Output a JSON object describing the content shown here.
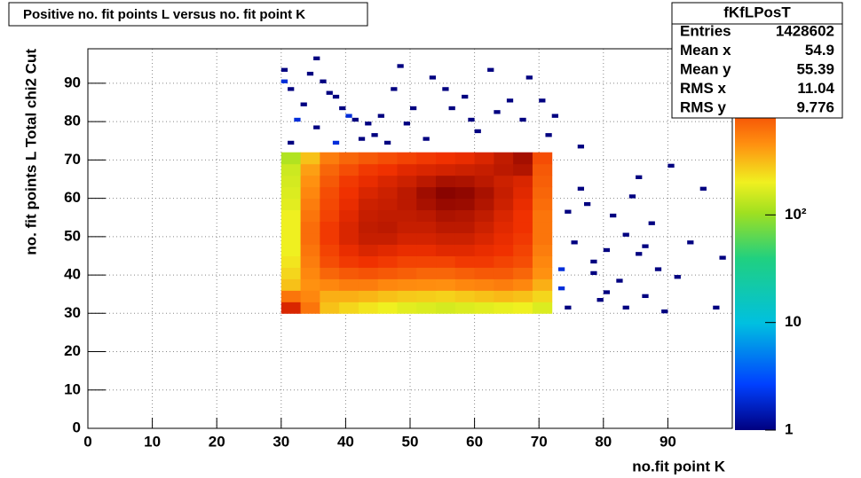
{
  "chart_data": {
    "type": "heatmap",
    "title": "Positive no. fit points L versus no. fit point K",
    "xlabel": "no.fit point K",
    "ylabel": "no. fit points  L  Total chi2 Cut",
    "xlim": [
      0,
      100
    ],
    "ylim": [
      0,
      99
    ],
    "xticks": [
      0,
      10,
      20,
      30,
      40,
      50,
      60,
      70,
      80,
      90
    ],
    "yticks": [
      0,
      10,
      20,
      30,
      40,
      50,
      60,
      70,
      80,
      90
    ],
    "grid": true,
    "zscale": "log",
    "zlim": [
      1,
      3500
    ],
    "zticks": [
      1,
      10,
      {
        "value": 100,
        "label": "10²"
      }
    ],
    "xbins": [
      30,
      33,
      36,
      39,
      42,
      45,
      48,
      51,
      54,
      57,
      60,
      63,
      66,
      69,
      72
    ],
    "ybins": [
      30,
      33,
      36,
      39,
      42,
      45,
      48,
      51,
      54,
      57,
      60,
      63,
      66,
      69,
      72
    ],
    "values": [
      [
        1500,
        600,
        300,
        250,
        220,
        200,
        180,
        170,
        160,
        170,
        180,
        190,
        200,
        170
      ],
      [
        600,
        500,
        350,
        350,
        330,
        300,
        280,
        270,
        260,
        280,
        300,
        320,
        300,
        250
      ],
      [
        300,
        450,
        500,
        550,
        550,
        500,
        480,
        470,
        460,
        500,
        520,
        550,
        500,
        350
      ],
      [
        250,
        500,
        700,
        800,
        850,
        800,
        750,
        700,
        700,
        750,
        800,
        800,
        700,
        450
      ],
      [
        220,
        550,
        900,
        1100,
        1200,
        1100,
        1000,
        1000,
        1000,
        1100,
        1100,
        1000,
        900,
        500
      ],
      [
        200,
        600,
        1000,
        1300,
        1500,
        1400,
        1300,
        1300,
        1400,
        1400,
        1300,
        1200,
        1000,
        550
      ],
      [
        200,
        650,
        1100,
        1500,
        1800,
        1800,
        1600,
        1600,
        1700,
        1700,
        1500,
        1300,
        1100,
        600
      ],
      [
        200,
        650,
        1100,
        1500,
        1900,
        2000,
        1800,
        1800,
        2000,
        2000,
        1700,
        1400,
        1200,
        600
      ],
      [
        200,
        600,
        1000,
        1400,
        1800,
        1900,
        1900,
        2000,
        2300,
        2200,
        1900,
        1500,
        1200,
        600
      ],
      [
        180,
        550,
        950,
        1300,
        1700,
        1800,
        2000,
        2400,
        2800,
        2700,
        2200,
        1700,
        1300,
        650
      ],
      [
        170,
        500,
        900,
        1200,
        1500,
        1700,
        2000,
        2600,
        3200,
        3000,
        2400,
        1800,
        1400,
        700
      ],
      [
        160,
        450,
        800,
        1100,
        1300,
        1500,
        1700,
        2000,
        2400,
        2300,
        2000,
        1700,
        1500,
        750
      ],
      [
        150,
        400,
        700,
        900,
        1100,
        1200,
        1400,
        1500,
        1600,
        1700,
        1800,
        2000,
        2200,
        800
      ],
      [
        120,
        300,
        550,
        700,
        800,
        900,
        1000,
        1100,
        1200,
        1300,
        1500,
        1900,
        2500,
        900
      ]
    ],
    "sparse": {
      "x": [
        30,
        30,
        31,
        32,
        33,
        34,
        35,
        36,
        37,
        38,
        39,
        40,
        41,
        42,
        43,
        44,
        45,
        47,
        48,
        49,
        50,
        52,
        53,
        55,
        56,
        58,
        59,
        60,
        62,
        63,
        65,
        67,
        68,
        70,
        72,
        71,
        35,
        38,
        46,
        31,
        73,
        73,
        74,
        75,
        76,
        77,
        78,
        79,
        80,
        81,
        82,
        83,
        84,
        85,
        86,
        87,
        88,
        89,
        91,
        93,
        95,
        97,
        98,
        90,
        76,
        85,
        74,
        78,
        80,
        83,
        86
      ],
      "y": [
        93,
        90,
        88,
        80,
        84,
        92,
        96,
        90,
        87,
        86,
        83,
        81,
        80,
        75,
        79,
        76,
        81,
        88,
        94,
        79,
        83,
        75,
        91,
        88,
        83,
        86,
        80,
        77,
        93,
        82,
        85,
        80,
        91,
        85,
        81,
        76,
        78,
        74,
        74,
        74,
        41,
        36,
        31,
        48,
        62,
        58,
        40,
        33,
        46,
        55,
        38,
        50,
        60,
        45,
        34,
        53,
        41,
        30,
        39,
        48,
        62,
        31,
        44,
        68,
        73,
        65,
        56,
        43,
        35,
        31,
        47
      ],
      "values": [
        1,
        2,
        1,
        2,
        1,
        1,
        1,
        1,
        1,
        1,
        1,
        2,
        1,
        1,
        1,
        1,
        1,
        1,
        1,
        1,
        1,
        1,
        1,
        1,
        1,
        1,
        1,
        1,
        1,
        1,
        1,
        1,
        1,
        1,
        1,
        1,
        1,
        2,
        1,
        1,
        2,
        2,
        1,
        1,
        1,
        1,
        1,
        1,
        1,
        1,
        1,
        1,
        1,
        1,
        1,
        1,
        1,
        1,
        1,
        1,
        1,
        1,
        1,
        1,
        1,
        1,
        1,
        1,
        1,
        1,
        1
      ]
    },
    "stats": {
      "title": "fKfLPosT",
      "rows": [
        {
          "label": "Entries",
          "value": 1428602
        },
        {
          "label": "Mean x",
          "value": 54.9
        },
        {
          "label": "Mean y",
          "value": 55.39
        },
        {
          "label": "RMS x",
          "value": 11.04
        },
        {
          "label": "RMS y",
          "value": 9.776
        }
      ]
    }
  }
}
